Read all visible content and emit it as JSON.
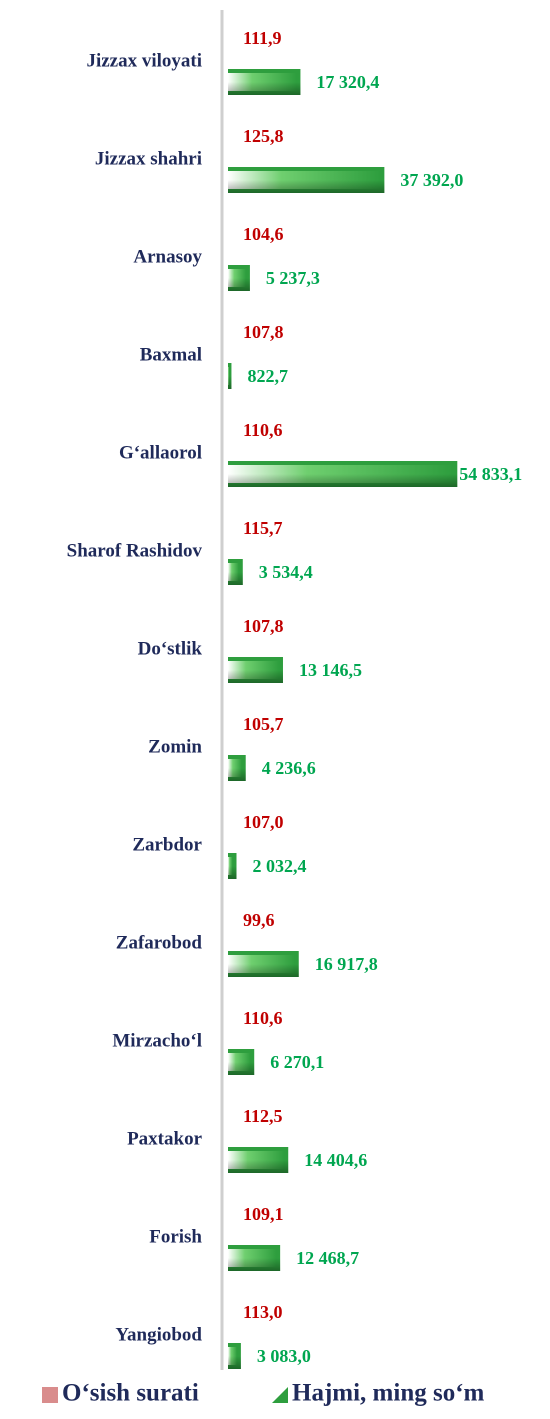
{
  "chart_data": {
    "type": "bar",
    "orientation": "horizontal",
    "categories": [
      "Jizzax viloyati",
      "Jizzax shahri",
      "Arnasoy",
      "Baxmal",
      "G‘allaorol",
      "Sharof Rashidov",
      "Do‘stlik",
      "Zomin",
      "Zarbdor",
      "Zafarobod",
      "Mirzacho‘l",
      "Paxtakor",
      "Forish",
      "Yangiobod"
    ],
    "series": [
      {
        "name": "O‘sish surati",
        "color": "#d98c8c",
        "values": [
          111.9,
          125.8,
          104.6,
          107.8,
          110.6,
          115.7,
          107.8,
          105.7,
          107.0,
          99.6,
          110.6,
          112.5,
          109.1,
          113.0
        ],
        "value_labels": [
          "111,9",
          "125,8",
          "104,6",
          "107,8",
          "110,6",
          "115,7",
          "107,8",
          "105,7",
          "107,0",
          "99,6",
          "110,6",
          "112,5",
          "109,1",
          "113,0"
        ]
      },
      {
        "name": "Hajmi, ming so‘m",
        "color": "#2e9e3e",
        "values": [
          17320.4,
          37392.0,
          5237.3,
          822.7,
          54833.1,
          3534.4,
          13146.5,
          4236.6,
          2032.4,
          16917.8,
          6270.1,
          14404.6,
          12468.7,
          3083.0
        ],
        "value_labels": [
          "17 320,4",
          "37 392,0",
          "5 237,3",
          "822,7",
          "54 833,1",
          "3 534,4",
          "13 146,5",
          "4 236,6",
          "2 032,4",
          "16 917,8",
          "6 270,1",
          "14 404,6",
          "12 468,7",
          "3 083,0"
        ]
      }
    ],
    "xlim": [
      0,
      77000
    ],
    "legend": "bottom"
  }
}
